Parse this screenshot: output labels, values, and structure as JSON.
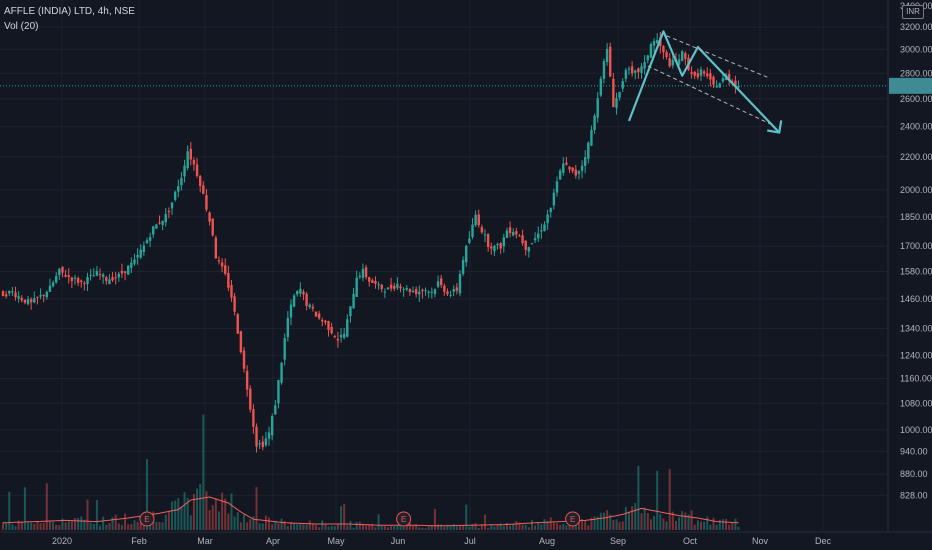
{
  "header": {
    "symbol_line": "AFFLE (INDIA) LTD, 4h, NSE",
    "volume_line": "Vol (20)"
  },
  "currency_badge": "INR",
  "colors": {
    "background": "#131722",
    "up": "#26a69a",
    "down": "#ef5350",
    "volume_ma": "#f0605e",
    "drawing": "#5fbfc7",
    "last_price_label": "#3e8a95"
  },
  "chart_data": {
    "type": "candlestick",
    "ylim": [
      780,
      3400
    ],
    "y_ticks": [
      828,
      880,
      940,
      1000,
      1080,
      1160,
      1240,
      1340,
      1460,
      1580,
      1700,
      1850,
      2000,
      2200,
      2400,
      2600,
      2800,
      3000,
      3200,
      3400
    ],
    "y_tick_labels": [
      "828.00",
      "880.00",
      "940.00",
      "1000.00",
      "1080.00",
      "1160.00",
      "1240.00",
      "1340.00",
      "1460.00",
      "1580.00",
      "1700.00",
      "1850.00",
      "2000.00",
      "2200.00",
      "2400.00",
      "2600.00",
      "2800.00",
      "3000.00",
      "3200.00",
      "3400.00"
    ],
    "x_labels": [
      "2020",
      "Feb",
      "Mar",
      "Apr",
      "May",
      "Jun",
      "Jul",
      "Aug",
      "Sep",
      "Oct",
      "Nov",
      "Dec"
    ],
    "last_price": 2700,
    "price_path": [
      [
        0,
        1480
      ],
      [
        3,
        1490
      ],
      [
        6,
        1460
      ],
      [
        9,
        1440
      ],
      [
        12,
        1470
      ],
      [
        15,
        1505
      ],
      [
        18,
        1580
      ],
      [
        21,
        1555
      ],
      [
        25,
        1530
      ],
      [
        30,
        1570
      ],
      [
        33,
        1545
      ],
      [
        37,
        1560
      ],
      [
        42,
        1625
      ],
      [
        45,
        1700
      ],
      [
        48,
        1790
      ],
      [
        52,
        1855
      ],
      [
        54,
        1930
      ],
      [
        57,
        2080
      ],
      [
        59,
        2240
      ],
      [
        61,
        2150
      ],
      [
        63,
        2040
      ],
      [
        65,
        1900
      ],
      [
        67,
        1760
      ],
      [
        68,
        1650
      ],
      [
        71,
        1560
      ],
      [
        73,
        1470
      ],
      [
        75,
        1330
      ],
      [
        77,
        1190
      ],
      [
        79,
        1070
      ],
      [
        81,
        960
      ],
      [
        83,
        960
      ],
      [
        85,
        990
      ],
      [
        87,
        1080
      ],
      [
        89,
        1220
      ],
      [
        91,
        1380
      ],
      [
        93,
        1470
      ],
      [
        95,
        1500
      ],
      [
        97,
        1440
      ],
      [
        99,
        1410
      ],
      [
        101,
        1380
      ],
      [
        103,
        1360
      ],
      [
        105,
        1330
      ],
      [
        107,
        1300
      ],
      [
        109,
        1320
      ],
      [
        111,
        1420
      ],
      [
        113,
        1560
      ],
      [
        115,
        1580
      ],
      [
        117,
        1540
      ],
      [
        120,
        1510
      ],
      [
        123,
        1500
      ],
      [
        126,
        1525
      ],
      [
        129,
        1500
      ],
      [
        132,
        1490
      ],
      [
        135,
        1500
      ],
      [
        137,
        1490
      ],
      [
        139,
        1530
      ],
      [
        141,
        1500
      ],
      [
        143,
        1480
      ],
      [
        145,
        1500
      ],
      [
        147,
        1640
      ],
      [
        149,
        1740
      ],
      [
        151,
        1860
      ],
      [
        153,
        1780
      ],
      [
        155,
        1710
      ],
      [
        157,
        1695
      ],
      [
        159,
        1700
      ],
      [
        161,
        1780
      ],
      [
        163,
        1780
      ],
      [
        165,
        1750
      ],
      [
        167,
        1695
      ],
      [
        169,
        1720
      ],
      [
        171,
        1760
      ],
      [
        173,
        1820
      ],
      [
        175,
        1900
      ],
      [
        177,
        2040
      ],
      [
        179,
        2170
      ],
      [
        181,
        2110
      ],
      [
        183,
        2090
      ],
      [
        185,
        2150
      ],
      [
        187,
        2280
      ],
      [
        189,
        2470
      ],
      [
        191,
        2780
      ],
      [
        193,
        2990
      ],
      [
        195,
        2560
      ],
      [
        197,
        2650
      ],
      [
        199,
        2850
      ],
      [
        201,
        2780
      ],
      [
        203,
        2820
      ],
      [
        205,
        2870
      ],
      [
        207,
        3050
      ],
      [
        209,
        3080
      ],
      [
        211,
        2960
      ],
      [
        213,
        2880
      ],
      [
        215,
        2890
      ],
      [
        217,
        2960
      ],
      [
        219,
        2850
      ],
      [
        221,
        2760
      ],
      [
        223,
        2820
      ],
      [
        225,
        2760
      ],
      [
        227,
        2700
      ],
      [
        229,
        2720
      ],
      [
        231,
        2780
      ],
      [
        233,
        2740
      ],
      [
        235,
        2700
      ]
    ],
    "volume_path": [
      [
        0,
        0.12
      ],
      [
        10,
        0.14
      ],
      [
        20,
        0.16
      ],
      [
        30,
        0.14
      ],
      [
        40,
        0.2
      ],
      [
        50,
        0.28
      ],
      [
        56,
        0.34
      ],
      [
        60,
        0.5
      ],
      [
        66,
        0.55
      ],
      [
        72,
        0.45
      ],
      [
        76,
        0.3
      ],
      [
        80,
        0.18
      ],
      [
        90,
        0.12
      ],
      [
        100,
        0.1
      ],
      [
        110,
        0.1
      ],
      [
        120,
        0.08
      ],
      [
        130,
        0.08
      ],
      [
        140,
        0.07
      ],
      [
        150,
        0.08
      ],
      [
        160,
        0.09
      ],
      [
        170,
        0.12
      ],
      [
        178,
        0.14
      ],
      [
        186,
        0.16
      ],
      [
        192,
        0.2
      ],
      [
        198,
        0.26
      ],
      [
        204,
        0.36
      ],
      [
        210,
        0.3
      ],
      [
        216,
        0.24
      ],
      [
        222,
        0.2
      ],
      [
        228,
        0.14
      ],
      [
        235,
        0.12
      ]
    ],
    "earnings_markers": [
      46,
      128,
      182
    ],
    "drawing_zigzag": [
      [
        2440,
        200
      ],
      [
        3160,
        211
      ],
      [
        2780,
        217
      ],
      [
        3020,
        222
      ],
      [
        2360,
        248
      ]
    ],
    "drawing_channel_top": [
      [
        3120,
        212
      ],
      [
        2760,
        245
      ]
    ],
    "drawing_channel_bottom": [
      [
        2860,
        206
      ],
      [
        2420,
        245
      ]
    ]
  }
}
